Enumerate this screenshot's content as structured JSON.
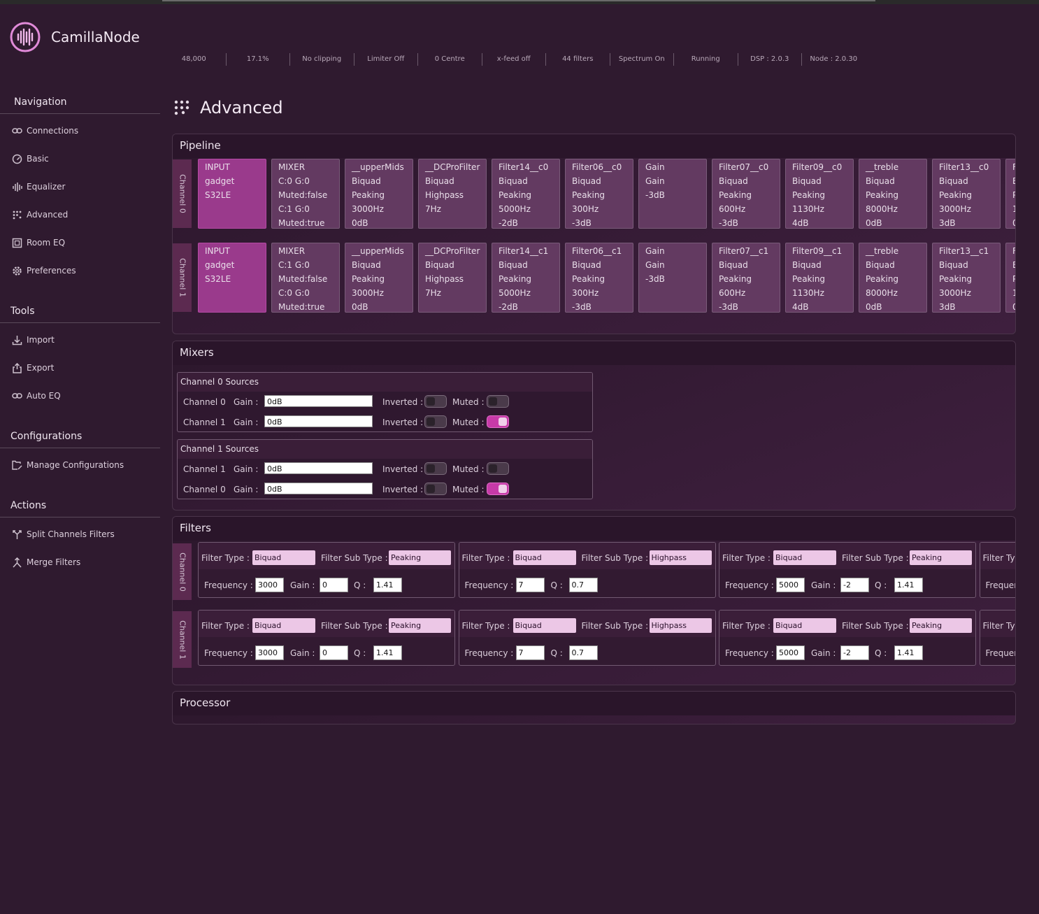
{
  "app": {
    "title": "CamillaNode"
  },
  "status": [
    "48,000",
    "17.1%",
    "No clipping",
    "Limiter Off",
    "0 Centre",
    "x-feed off",
    "44 filters",
    "Spectrum On",
    "Running",
    "DSP : 2.0.3",
    "Node : 2.0.30"
  ],
  "sidebar": {
    "navigation": {
      "title": "Navigation",
      "items": [
        "Connections",
        "Basic",
        "Equalizer",
        "Advanced",
        "Room EQ",
        "Preferences"
      ]
    },
    "tools": {
      "title": "Tools",
      "items": [
        "Import",
        "Export",
        "Auto EQ"
      ]
    },
    "configurations": {
      "title": "Configurations",
      "items": [
        "Manage Configurations"
      ]
    },
    "actions": {
      "title": "Actions",
      "items": [
        "Split Channels Filters",
        "Merge Filters"
      ]
    }
  },
  "page": {
    "title": "Advanced"
  },
  "pipeline": {
    "title": "Pipeline",
    "channels": [
      {
        "label": "Channel 0",
        "blocks": [
          [
            "INPUT",
            "gadget",
            "S32LE"
          ],
          [
            "MIXER",
            "C:0 G:0",
            "Muted:false",
            "C:1 G:0",
            "Muted:true"
          ],
          [
            "__upperMids",
            "Biquad",
            "Peaking",
            "3000Hz",
            "0dB"
          ],
          [
            "__DCProFilter",
            "Biquad",
            "Highpass",
            "7Hz"
          ],
          [
            "Filter14__c0",
            "Biquad",
            "Peaking",
            "5000Hz",
            "-2dB"
          ],
          [
            "Filter06__c0",
            "Biquad",
            "Peaking",
            "300Hz",
            "-3dB"
          ],
          [
            "Gain",
            "Gain",
            "-3dB"
          ],
          [
            "Filter07__c0",
            "Biquad",
            "Peaking",
            "600Hz",
            "-3dB"
          ],
          [
            "Filter09__c0",
            "Biquad",
            "Peaking",
            "1130Hz",
            "4dB"
          ],
          [
            "__treble",
            "Biquad",
            "Peaking",
            "8000Hz",
            "0dB"
          ],
          [
            "Filter13__c0",
            "Biquad",
            "Peaking",
            "3000Hz",
            "3dB"
          ],
          [
            "F",
            "B",
            "P",
            "1",
            "0"
          ]
        ]
      },
      {
        "label": "Channel 1",
        "blocks": [
          [
            "INPUT",
            "gadget",
            "S32LE"
          ],
          [
            "MIXER",
            "C:1 G:0",
            "Muted:false",
            "C:0 G:0",
            "Muted:true"
          ],
          [
            "__upperMids",
            "Biquad",
            "Peaking",
            "3000Hz",
            "0dB"
          ],
          [
            "__DCProFilter",
            "Biquad",
            "Highpass",
            "7Hz"
          ],
          [
            "Filter14__c1",
            "Biquad",
            "Peaking",
            "5000Hz",
            "-2dB"
          ],
          [
            "Filter06__c1",
            "Biquad",
            "Peaking",
            "300Hz",
            "-3dB"
          ],
          [
            "Gain",
            "Gain",
            "-3dB"
          ],
          [
            "Filter07__c1",
            "Biquad",
            "Peaking",
            "600Hz",
            "-3dB"
          ],
          [
            "Filter09__c1",
            "Biquad",
            "Peaking",
            "1130Hz",
            "4dB"
          ],
          [
            "__treble",
            "Biquad",
            "Peaking",
            "8000Hz",
            "0dB"
          ],
          [
            "Filter13__c1",
            "Biquad",
            "Peaking",
            "3000Hz",
            "3dB"
          ],
          [
            "F",
            "B",
            "P",
            "1",
            "0"
          ]
        ]
      }
    ]
  },
  "mixers": {
    "title": "Mixers",
    "labels": {
      "gain": "Gain :",
      "inverted": "Inverted :",
      "muted": "Muted :"
    },
    "groups": [
      {
        "title": "Channel 0 Sources",
        "rows": [
          {
            "channel": "Channel 0",
            "gain": "0dB",
            "inverted": false,
            "muted": false
          },
          {
            "channel": "Channel 1",
            "gain": "0dB",
            "inverted": false,
            "muted": true
          }
        ]
      },
      {
        "title": "Channel 1 Sources",
        "rows": [
          {
            "channel": "Channel 1",
            "gain": "0dB",
            "inverted": false,
            "muted": false
          },
          {
            "channel": "Channel 0",
            "gain": "0dB",
            "inverted": false,
            "muted": true
          }
        ]
      }
    ]
  },
  "filters": {
    "title": "Filters",
    "labels": {
      "type": "Filter Type :",
      "subtype": "Filter Sub Type :",
      "frequency": "Frequency :",
      "gain": "Gain :",
      "q": "Q :",
      "type_partial": "Filter Typ",
      "frequency_partial": "Frequen"
    },
    "channels": [
      {
        "label": "Channel 0",
        "filters": [
          {
            "type": "Biquad",
            "subtype": "Peaking",
            "frequency": "3000",
            "gain": "0",
            "q": "1.41"
          },
          {
            "type": "Biquad",
            "subtype": "Highpass",
            "frequency": "7",
            "q": "0.7"
          },
          {
            "type": "Biquad",
            "subtype": "Peaking",
            "frequency": "5000",
            "gain": "-2",
            "q": "1.41"
          }
        ]
      },
      {
        "label": "Channel 1",
        "filters": [
          {
            "type": "Biquad",
            "subtype": "Peaking",
            "frequency": "3000",
            "gain": "0",
            "q": "1.41"
          },
          {
            "type": "Biquad",
            "subtype": "Highpass",
            "frequency": "7",
            "q": "0.7"
          },
          {
            "type": "Biquad",
            "subtype": "Peaking",
            "frequency": "5000",
            "gain": "-2",
            "q": "1.41"
          }
        ]
      }
    ]
  },
  "processor": {
    "title": "Processor"
  }
}
